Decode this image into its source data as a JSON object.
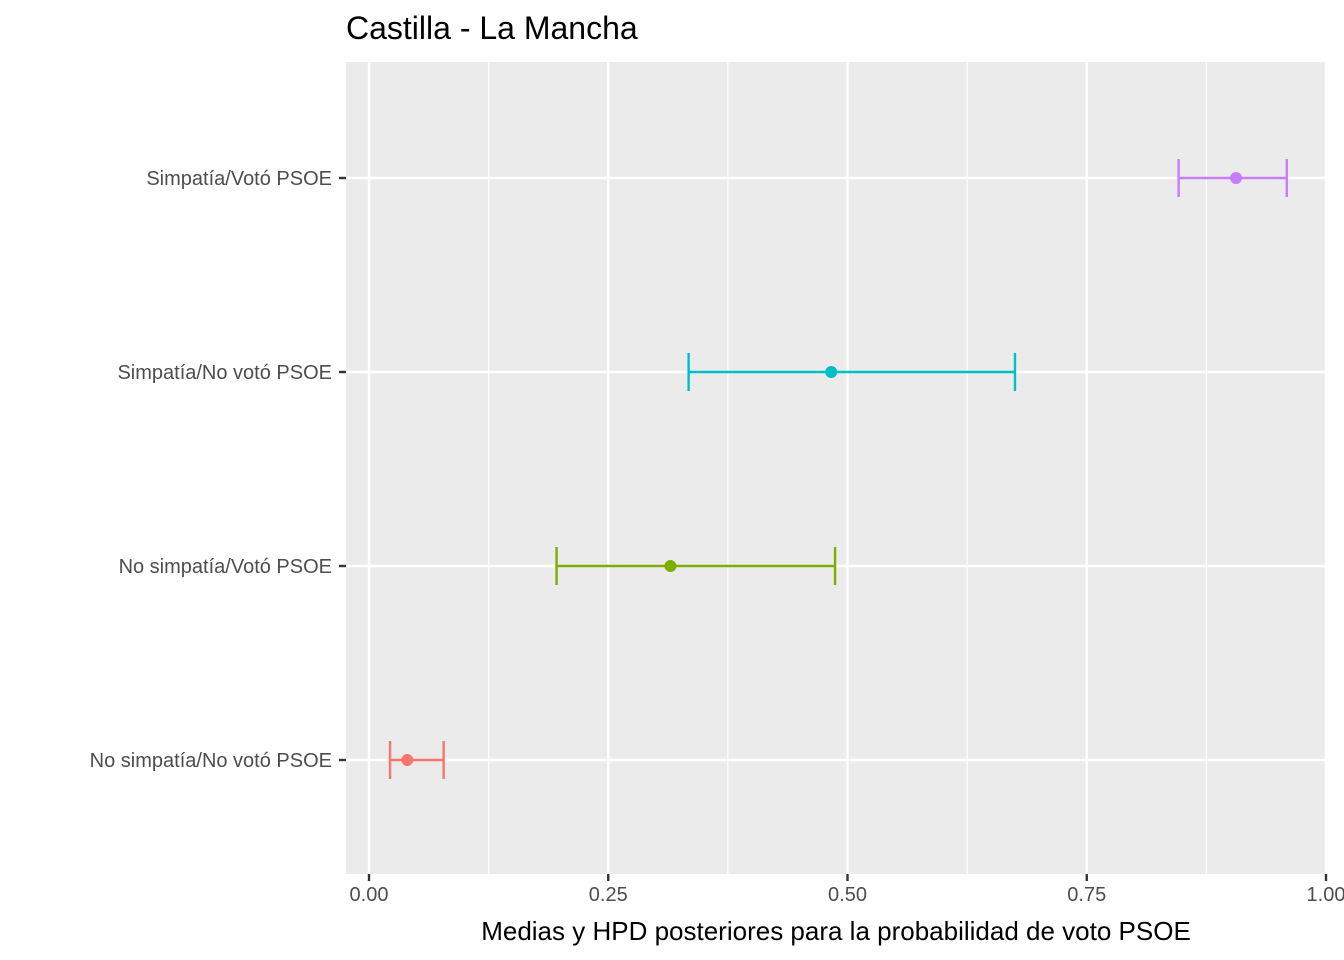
{
  "chart_data": {
    "type": "errorbar",
    "title": "Castilla - La Mancha",
    "xlabel": "Medias y HPD posteriores para la probabilidad de voto PSOE",
    "ylabel": "",
    "xlim": [
      -0.05,
      1.0
    ],
    "x_ticks": [
      0.0,
      0.25,
      0.5,
      0.75,
      1.0
    ],
    "x_tick_labels": [
      "0.00",
      "0.25",
      "0.50",
      "0.75",
      "1.00"
    ],
    "grid": true,
    "legend": "none",
    "categories": [
      "No simpatía/No votó PSOE",
      "No simpatía/Votó PSOE",
      "Simpatía/No votó PSOE",
      "Simpatía/Votó PSOE"
    ],
    "series": [
      {
        "category": "No simpatía/No votó PSOE",
        "mean": 0.04,
        "lower": 0.022,
        "upper": 0.078,
        "color": "#F8766D"
      },
      {
        "category": "No simpatía/Votó PSOE",
        "mean": 0.315,
        "lower": 0.196,
        "upper": 0.487,
        "color": "#7CAE00"
      },
      {
        "category": "Simpatía/No votó PSOE",
        "mean": 0.483,
        "lower": 0.334,
        "upper": 0.675,
        "color": "#00BFC4"
      },
      {
        "category": "Simpatía/Votó PSOE",
        "mean": 0.906,
        "lower": 0.846,
        "upper": 0.959,
        "color": "#C77CFF"
      }
    ]
  }
}
